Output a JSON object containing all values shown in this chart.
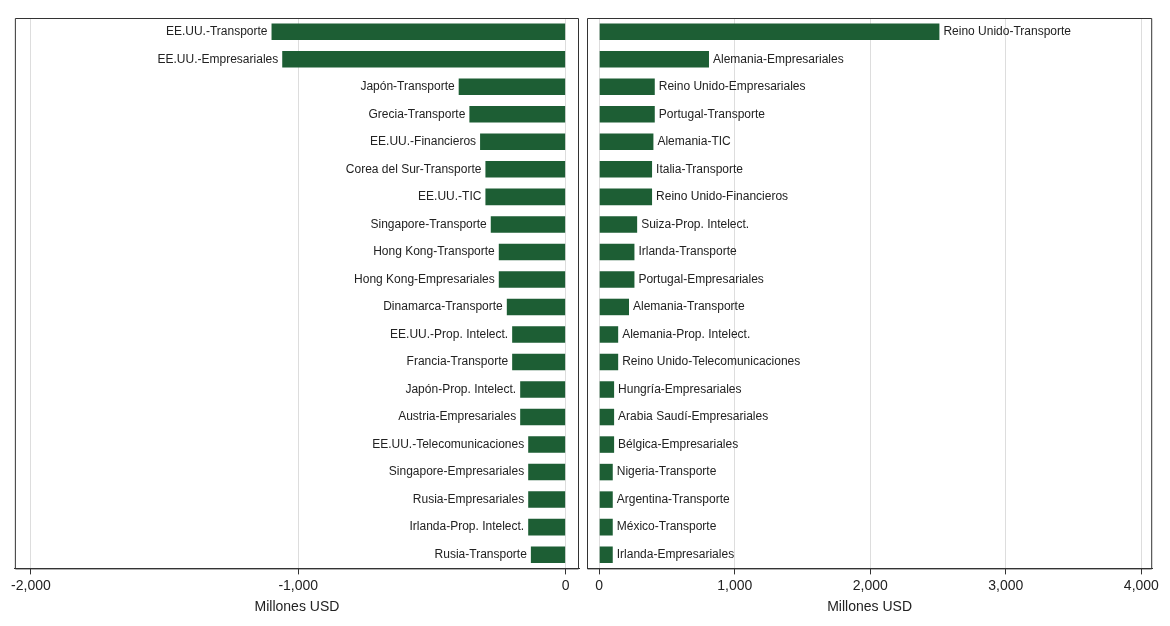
{
  "chart_data": [
    {
      "type": "bar",
      "orientation": "horizontal",
      "xlabel": "Millones USD",
      "color": "#1d5e34",
      "grid": "x",
      "categories": [
        "EE.UU.-Transporte",
        "EE.UU.-Empresariales",
        "Japón-Transporte",
        "Grecia-Transporte",
        "EE.UU.-Financieros",
        "Corea del Sur-Transporte",
        "EE.UU.-TIC",
        "Singapore-Transporte",
        "Hong Kong-Transporte",
        "Hong Kong-Empresariales",
        "Dinamarca-Transporte",
        "EE.UU.-Prop. Intelect.",
        "Francia-Transporte",
        "Japón-Prop. Intelect.",
        "Austria-Empresariales",
        "EE.UU.-Telecomunicaciones",
        "Singapore-Empresariales",
        "Rusia-Empresariales",
        "Irlanda-Prop. Intelect.",
        "Rusia-Transporte"
      ],
      "values": [
        -1100,
        -1060,
        -400,
        -360,
        -320,
        -300,
        -300,
        -280,
        -250,
        -250,
        -220,
        -200,
        -200,
        -170,
        -170,
        -140,
        -140,
        -140,
        -140,
        -130
      ],
      "xlim": [
        -2060,
        50
      ],
      "xticks": [
        {
          "value": -2000,
          "label": "-2,000"
        },
        {
          "value": -1000,
          "label": "-1,000"
        },
        0
      ]
    },
    {
      "type": "bar",
      "orientation": "horizontal",
      "xlabel": "Millones USD",
      "color": "#1d5e34",
      "grid": "x",
      "categories": [
        "Reino Unido-Transporte",
        "Alemania-Empresariales",
        "Reino Unido-Empresariales",
        "Portugal-Transporte",
        "Alemania-TIC",
        "Italia-Transporte",
        "Reino Unido-Financieros",
        "Suiza-Prop. Intelect.",
        "Irlanda-Transporte",
        "Portugal-Empresariales",
        "Alemania-Transporte",
        "Alemania-Prop. Intelect.",
        "Reino Unido-Telecomunicaciones",
        "Hungría-Empresariales",
        "Arabia Saudí-Empresariales",
        "Bélgica-Empresariales",
        "Nigeria-Transporte",
        "Argentina-Transporte",
        "México-Transporte",
        "Irlanda-Empresariales"
      ],
      "values": [
        2510,
        810,
        410,
        410,
        400,
        390,
        390,
        280,
        260,
        260,
        220,
        140,
        140,
        110,
        110,
        110,
        100,
        100,
        100,
        100
      ],
      "xlim": [
        -90,
        4080
      ],
      "xticks": [
        0,
        {
          "value": 1000,
          "label": "1,000"
        },
        {
          "value": 2000,
          "label": "2,000"
        },
        {
          "value": 3000,
          "label": "3,000"
        },
        {
          "value": 4000,
          "label": "4,000"
        }
      ]
    }
  ]
}
